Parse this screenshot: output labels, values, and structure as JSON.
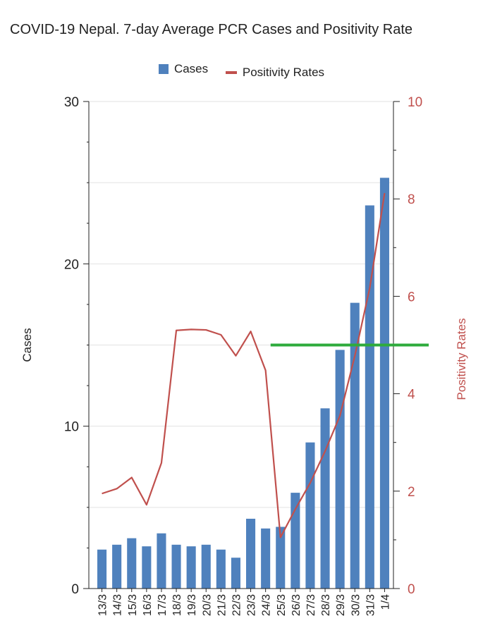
{
  "chart_data": {
    "type": "bar",
    "title": "COVID-19 Nepal. 7-day Average PCR Cases and Positivity Rate",
    "categories": [
      "13/3",
      "14/3",
      "15/3",
      "16/3",
      "17/3",
      "18/3",
      "19/3",
      "20/3",
      "21/3",
      "22/3",
      "23/3",
      "24/3",
      "25/3",
      "26/3",
      "27/3",
      "28/3",
      "29/3",
      "30/3",
      "31/3",
      "1/4"
    ],
    "series": [
      {
        "name": "Cases",
        "type": "bar",
        "axis": "left",
        "color": "#4f81bd",
        "values": [
          2.4,
          2.7,
          3.1,
          2.6,
          3.4,
          2.7,
          2.6,
          2.7,
          2.4,
          1.9,
          4.3,
          3.7,
          3.8,
          5.9,
          9.0,
          11.1,
          14.7,
          17.6,
          23.6,
          25.3
        ]
      },
      {
        "name": "Positivity Rates",
        "type": "line",
        "axis": "right",
        "color": "#c0504d",
        "values": [
          1.95,
          2.05,
          2.28,
          1.72,
          2.58,
          5.3,
          5.32,
          5.31,
          5.21,
          4.78,
          5.28,
          4.48,
          1.05,
          1.63,
          2.17,
          2.82,
          3.55,
          4.78,
          6.17,
          8.12
        ]
      }
    ],
    "reference_line": {
      "axis": "right",
      "value": 5.0,
      "color": "#2eab3c"
    },
    "ylabel": "Cases",
    "y2label": "Positivity Rates",
    "ylim": [
      0,
      30
    ],
    "y2lim": [
      0,
      10
    ],
    "yticks": [
      0,
      10,
      20,
      30
    ],
    "y2ticks": [
      0,
      2,
      4,
      6,
      8,
      10
    ],
    "grid": true,
    "legend_position": "top-center"
  }
}
